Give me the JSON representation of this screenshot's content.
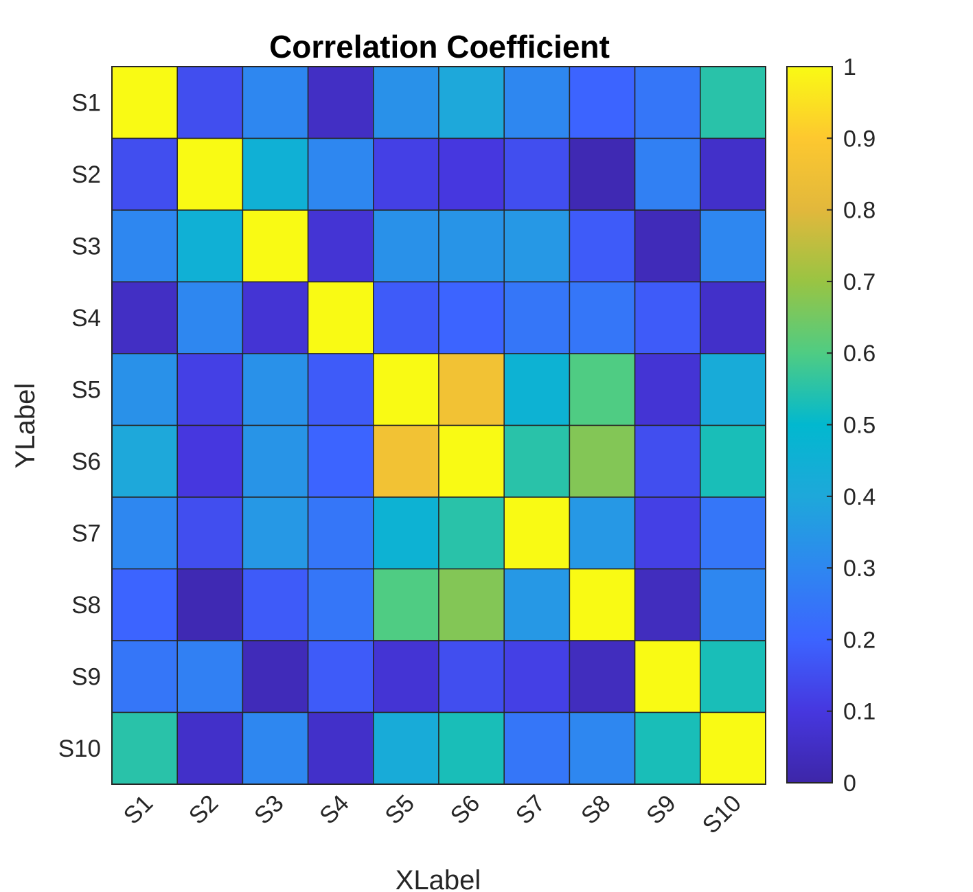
{
  "chart_data": {
    "type": "heatmap",
    "title": "Correlation Coefficient",
    "xlabel": "XLabel",
    "ylabel": "YLabel",
    "x_categories": [
      "S1",
      "S2",
      "S3",
      "S4",
      "S5",
      "S6",
      "S7",
      "S8",
      "S9",
      "S10"
    ],
    "y_categories": [
      "S1",
      "S2",
      "S3",
      "S4",
      "S5",
      "S6",
      "S7",
      "S8",
      "S9",
      "S10"
    ],
    "values": [
      [
        1.0,
        0.15,
        0.3,
        0.05,
        0.33,
        0.4,
        0.3,
        0.2,
        0.25,
        0.55
      ],
      [
        0.15,
        1.0,
        0.45,
        0.3,
        0.12,
        0.1,
        0.15,
        0.02,
        0.28,
        0.06
      ],
      [
        0.3,
        0.45,
        1.0,
        0.08,
        0.33,
        0.34,
        0.35,
        0.18,
        0.03,
        0.3
      ],
      [
        0.05,
        0.3,
        0.08,
        1.0,
        0.18,
        0.2,
        0.25,
        0.25,
        0.18,
        0.06
      ],
      [
        0.33,
        0.12,
        0.33,
        0.18,
        1.0,
        0.86,
        0.46,
        0.6,
        0.08,
        0.42
      ],
      [
        0.4,
        0.1,
        0.34,
        0.2,
        0.86,
        1.0,
        0.55,
        0.67,
        0.15,
        0.53
      ],
      [
        0.3,
        0.15,
        0.35,
        0.25,
        0.46,
        0.55,
        1.0,
        0.35,
        0.12,
        0.25
      ],
      [
        0.2,
        0.02,
        0.18,
        0.25,
        0.6,
        0.67,
        0.35,
        1.0,
        0.04,
        0.3
      ],
      [
        0.25,
        0.28,
        0.03,
        0.18,
        0.08,
        0.15,
        0.12,
        0.04,
        1.0,
        0.53
      ],
      [
        0.55,
        0.06,
        0.3,
        0.06,
        0.42,
        0.53,
        0.25,
        0.3,
        0.53,
        1.0
      ]
    ],
    "colorbar": {
      "range": [
        0,
        1
      ],
      "ticks": [
        "0",
        "0.1",
        "0.2",
        "0.3",
        "0.4",
        "0.5",
        "0.6",
        "0.7",
        "0.8",
        "0.9",
        "1"
      ],
      "colormap": "parula"
    },
    "grid": true
  }
}
